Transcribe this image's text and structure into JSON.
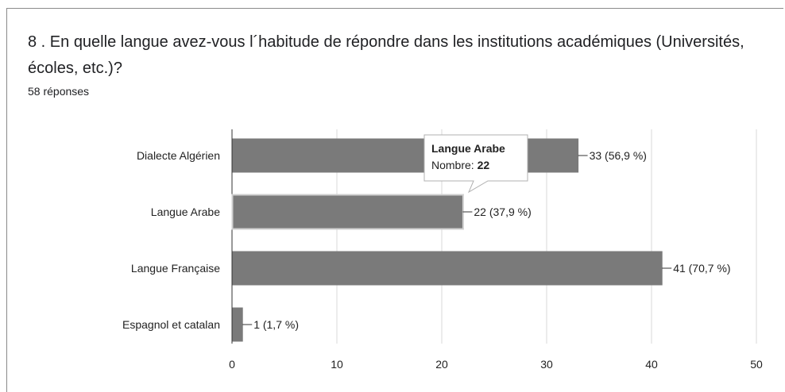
{
  "question": {
    "title": "8 . En quelle langue avez-vous l´habitude de répondre dans les institutions académiques (Universités, écoles, etc.)?",
    "responses": "58 réponses"
  },
  "colors": {
    "bar": "#7a7a7a",
    "bar_highlight_stroke": "#cfcfcf",
    "grid": "#d8d8d8",
    "axis": "#333333"
  },
  "chart_data": {
    "type": "bar",
    "orientation": "horizontal",
    "categories": [
      "Dialecte Algérien",
      "Langue Arabe",
      "Langue Française",
      "Espagnol et catalan"
    ],
    "values": [
      33,
      22,
      41,
      1
    ],
    "value_labels": [
      "33 (56,9 %)",
      "22 (37,9 %)",
      "41 (70,7 %)",
      "1 (1,7 %)"
    ],
    "xlim": [
      0,
      50
    ],
    "xticks": [
      0,
      10,
      20,
      30,
      40,
      50
    ],
    "grid": true,
    "highlighted_index": 1,
    "tooltip": {
      "title": "Langue Arabe",
      "label": "Nombre: ",
      "value": "22"
    }
  }
}
